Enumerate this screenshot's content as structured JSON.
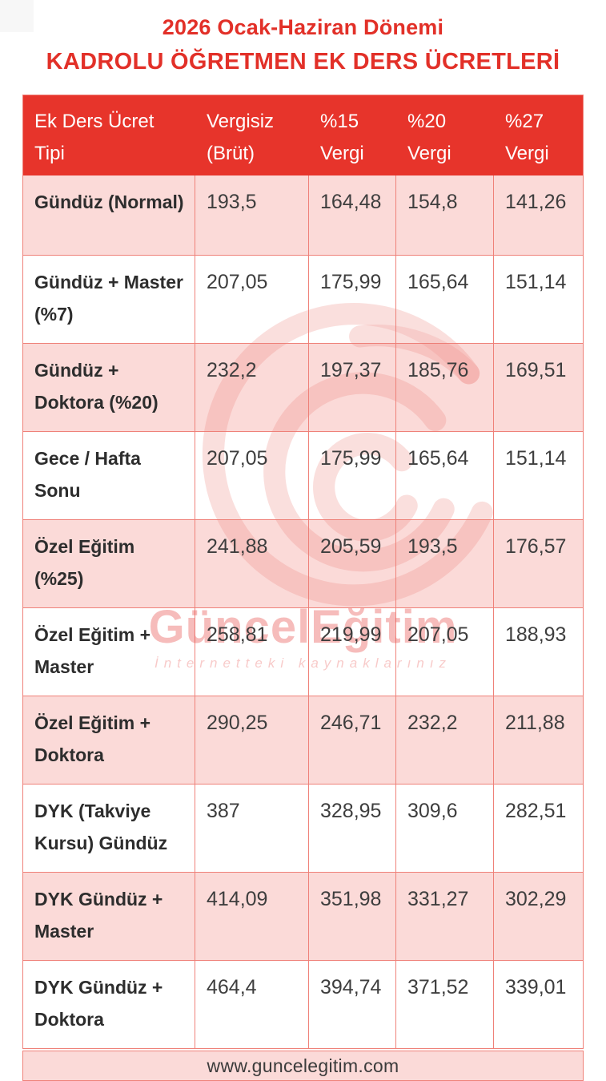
{
  "page": {
    "title_line1": "2026 Ocak-Haziran Dönemi",
    "title_line2": "KADROLU ÖĞRETMEN EK DERS ÜCRETLERİ"
  },
  "table": {
    "headers": [
      "Ek Ders Ücret Tipi",
      "Vergisiz (Brüt)",
      "%15 Vergi",
      "%20 Vergi",
      "%27 Vergi"
    ],
    "rows": [
      {
        "cells": [
          "Gündüz (Normal)",
          "193,5",
          "164,48",
          "154,8",
          "141,26"
        ]
      },
      {
        "cells": [
          "Gündüz + Master (%7)",
          "207,05",
          "175,99",
          "165,64",
          "151,14"
        ]
      },
      {
        "cells": [
          "Gündüz + Doktora (%20)",
          "232,2",
          "197,37",
          "185,76",
          "169,51"
        ]
      },
      {
        "cells": [
          "Gece / Hafta Sonu",
          "207,05",
          "175,99",
          "165,64",
          "151,14"
        ]
      },
      {
        "cells": [
          "Özel Eğitim (%25)",
          "241,88",
          "205,59",
          "193,5",
          "176,57"
        ]
      },
      {
        "cells": [
          "Özel Eğitim + Master",
          "258,81",
          "219,99",
          "207,05",
          "188,93"
        ]
      },
      {
        "cells": [
          "Özel Eğitim + Doktora",
          "290,25",
          "246,71",
          "232,2",
          "211,88"
        ]
      },
      {
        "cells": [
          "DYK (Takviye Kursu) Gündüz",
          "387",
          "328,95",
          "309,6",
          "282,51"
        ]
      },
      {
        "cells": [
          "DYK Gündüz + Master",
          "414,09",
          "351,98",
          "331,27",
          "302,29"
        ]
      },
      {
        "cells": [
          "DYK Gündüz + Doktora",
          "464,4",
          "394,74",
          "371,52",
          "339,01"
        ]
      }
    ]
  },
  "watermark": {
    "brand": "GüncelEğitim",
    "tagline": "İnternetteki kaynaklarınız"
  },
  "footer": {
    "url": "www.guncelegitim.com"
  },
  "colors": {
    "accent_red": "#e7342b",
    "title_red": "#e23028",
    "row_pink": "#fbdad8",
    "border_salmon": "#ef8179",
    "label_text": "#2d2d2d",
    "value_text": "#3e3e3e"
  }
}
